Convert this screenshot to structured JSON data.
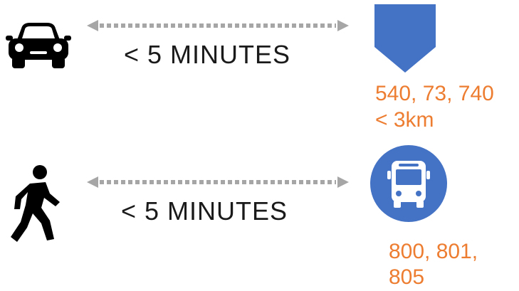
{
  "car_route": {
    "duration_label": "< 5 MINUTES",
    "routes_label": "540, 73, 740",
    "distance_label": "< 3km"
  },
  "walk_route": {
    "duration_label": "< 5 MINUTES",
    "routes_line_1": "800, 801,",
    "routes_line_2": "805"
  },
  "icons": {
    "car": "car-icon",
    "walk": "walking-person-icon",
    "marker": "pentagon-marker-icon",
    "bus": "bus-icon"
  },
  "colors": {
    "text": "#1a1a1a",
    "accent_orange": "#ed7d31",
    "marker_blue": "#4472c4",
    "bus_blue": "#4472c4",
    "arrow_gray": "#a6a6a6"
  }
}
